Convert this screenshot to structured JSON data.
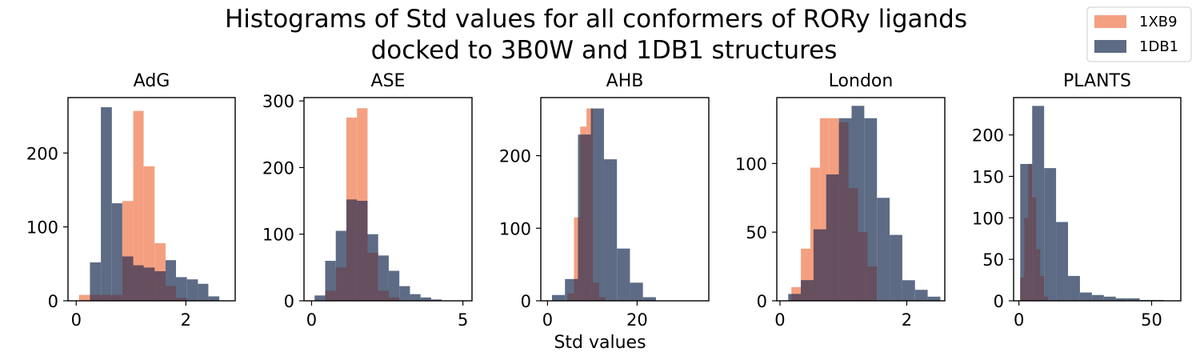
{
  "chart_data": {
    "type": "bar",
    "title": [
      "Histograms of Std values for all conformers of RORy ligands",
      "docked to 3B0W and 1DB1 structures"
    ],
    "xlabel": "Std values",
    "legend": {
      "placement": "top-right",
      "entries": [
        "1XB9",
        "1DB1"
      ]
    },
    "colors": {
      "1XB9": "#F4A080",
      "1DB1": "#5D6B85",
      "overlap": "#664F5E"
    },
    "grid": false,
    "panels": [
      {
        "name": "AdG",
        "xlim": [
          -0.15,
          2.9
        ],
        "ylim": [
          0,
          275
        ],
        "xticks": [
          0,
          2
        ],
        "yticks": [
          0,
          100,
          200
        ],
        "series": [
          {
            "name": "1XB9",
            "bins": [
              [
                0.05,
                0.25,
                8
              ],
              [
                0.25,
                0.45,
                8
              ],
              [
                0.45,
                0.65,
                8
              ],
              [
                0.65,
                0.84,
                8
              ],
              [
                0.84,
                1.04,
                135
              ],
              [
                1.04,
                1.23,
                257
              ],
              [
                1.23,
                1.43,
                182
              ],
              [
                1.43,
                1.63,
                78
              ],
              [
                1.63,
                1.82,
                20
              ],
              [
                1.82,
                2.02,
                4
              ]
            ]
          },
          {
            "name": "1DB1",
            "bins": [
              [
                0.25,
                0.45,
                52
              ],
              [
                0.45,
                0.65,
                262
              ],
              [
                0.65,
                0.84,
                132
              ],
              [
                0.84,
                1.04,
                60
              ],
              [
                1.04,
                1.23,
                48
              ],
              [
                1.23,
                1.43,
                45
              ],
              [
                1.43,
                1.63,
                40
              ],
              [
                1.63,
                1.82,
                55
              ],
              [
                1.82,
                2.02,
                32
              ],
              [
                2.02,
                2.22,
                29
              ],
              [
                2.22,
                2.41,
                23
              ],
              [
                2.41,
                2.61,
                6
              ]
            ]
          }
        ]
      },
      {
        "name": "ASE",
        "xlim": [
          -0.25,
          5.3
        ],
        "ylim": [
          0,
          305
        ],
        "xticks": [
          0,
          5
        ],
        "yticks": [
          0,
          100,
          200,
          300
        ],
        "series": [
          {
            "name": "1XB9",
            "bins": [
              [
                0.45,
                0.8,
                15
              ],
              [
                0.8,
                1.15,
                50
              ],
              [
                1.15,
                1.5,
                275
              ],
              [
                1.5,
                1.85,
                289
              ],
              [
                1.85,
                2.2,
                72
              ],
              [
                2.2,
                2.55,
                15
              ],
              [
                2.55,
                2.9,
                5
              ]
            ]
          },
          {
            "name": "1DB1",
            "bins": [
              [
                0.1,
                0.45,
                8
              ],
              [
                0.45,
                0.8,
                60
              ],
              [
                0.8,
                1.15,
                105
              ],
              [
                1.15,
                1.5,
                152
              ],
              [
                1.5,
                1.85,
                150
              ],
              [
                1.85,
                2.2,
                100
              ],
              [
                2.2,
                2.55,
                68
              ],
              [
                2.55,
                2.9,
                45
              ],
              [
                2.9,
                3.25,
                22
              ],
              [
                3.25,
                3.6,
                10
              ],
              [
                3.6,
                3.95,
                5
              ],
              [
                3.95,
                4.3,
                2
              ]
            ]
          }
        ]
      },
      {
        "name": "AHB",
        "xlim": [
          -1.5,
          36
        ],
        "ylim": [
          0,
          280
        ],
        "xticks": [
          0,
          20
        ],
        "yticks": [
          0,
          100,
          200
        ],
        "series": [
          {
            "name": "1XB9",
            "bins": [
              [
                4.5,
                5.9,
                10
              ],
              [
                5.9,
                7.3,
                115
              ],
              [
                7.3,
                8.7,
                240
              ],
              [
                8.7,
                10.1,
                265
              ],
              [
                10.1,
                11.5,
                25
              ],
              [
                11.5,
                12.9,
                5
              ]
            ]
          },
          {
            "name": "1DB1",
            "bins": [
              [
                1.0,
                3.9,
                8
              ],
              [
                3.9,
                6.8,
                30
              ],
              [
                6.8,
                9.7,
                229
              ],
              [
                9.7,
                12.6,
                265
              ],
              [
                12.6,
                15.5,
                195
              ],
              [
                15.5,
                18.4,
                72
              ],
              [
                18.4,
                21.3,
                25
              ],
              [
                21.3,
                24.2,
                5
              ]
            ]
          }
        ]
      },
      {
        "name": "London",
        "xlim": [
          -0.05,
          2.6
        ],
        "ylim": [
          0,
          148
        ],
        "xticks": [
          0,
          2
        ],
        "yticks": [
          0,
          50,
          100
        ],
        "series": [
          {
            "name": "1XB9",
            "bins": [
              [
                0.18,
                0.33,
                10
              ],
              [
                0.33,
                0.48,
                38
              ],
              [
                0.48,
                0.63,
                97
              ],
              [
                0.63,
                0.78,
                133
              ],
              [
                0.78,
                0.93,
                133
              ],
              [
                0.93,
                1.08,
                130
              ],
              [
                1.08,
                1.23,
                82
              ],
              [
                1.23,
                1.38,
                50
              ],
              [
                1.38,
                1.53,
                25
              ]
            ]
          },
          {
            "name": "1DB1",
            "bins": [
              [
                0.13,
                0.33,
                5
              ],
              [
                0.33,
                0.53,
                15
              ],
              [
                0.53,
                0.73,
                52
              ],
              [
                0.73,
                0.93,
                92
              ],
              [
                0.93,
                1.13,
                133
              ],
              [
                1.13,
                1.33,
                142
              ],
              [
                1.33,
                1.53,
                133
              ],
              [
                1.53,
                1.73,
                75
              ],
              [
                1.73,
                1.93,
                48
              ],
              [
                1.93,
                2.13,
                15
              ],
              [
                2.13,
                2.33,
                8
              ],
              [
                2.33,
                2.53,
                3
              ]
            ]
          }
        ]
      },
      {
        "name": "PLANTS",
        "xlim": [
          -2,
          61
        ],
        "ylim": [
          0,
          245
        ],
        "xticks": [
          0,
          50
        ],
        "yticks": [
          0,
          50,
          100,
          150,
          200
        ],
        "series": [
          {
            "name": "1XB9",
            "bins": [
              [
                0.5,
                2.0,
                28
              ],
              [
                2.0,
                3.5,
                100
              ],
              [
                3.5,
                5.0,
                165
              ],
              [
                5.0,
                6.5,
                125
              ],
              [
                6.5,
                8.0,
                62
              ],
              [
                8.0,
                9.5,
                30
              ],
              [
                9.5,
                11.0,
                5
              ]
            ]
          },
          {
            "name": "1DB1",
            "bins": [
              [
                0.5,
                5.0,
                165
              ],
              [
                5.0,
                9.5,
                235
              ],
              [
                9.5,
                14.0,
                160
              ],
              [
                14.0,
                18.5,
                95
              ],
              [
                18.5,
                23.0,
                30
              ],
              [
                23.0,
                27.5,
                10
              ],
              [
                27.5,
                32.0,
                7
              ],
              [
                32.0,
                36.5,
                5
              ],
              [
                36.5,
                41.0,
                3
              ],
              [
                41.0,
                45.5,
                3
              ],
              [
                45.5,
                50.0,
                1
              ],
              [
                50.0,
                54.5,
                1
              ]
            ]
          }
        ]
      }
    ]
  }
}
